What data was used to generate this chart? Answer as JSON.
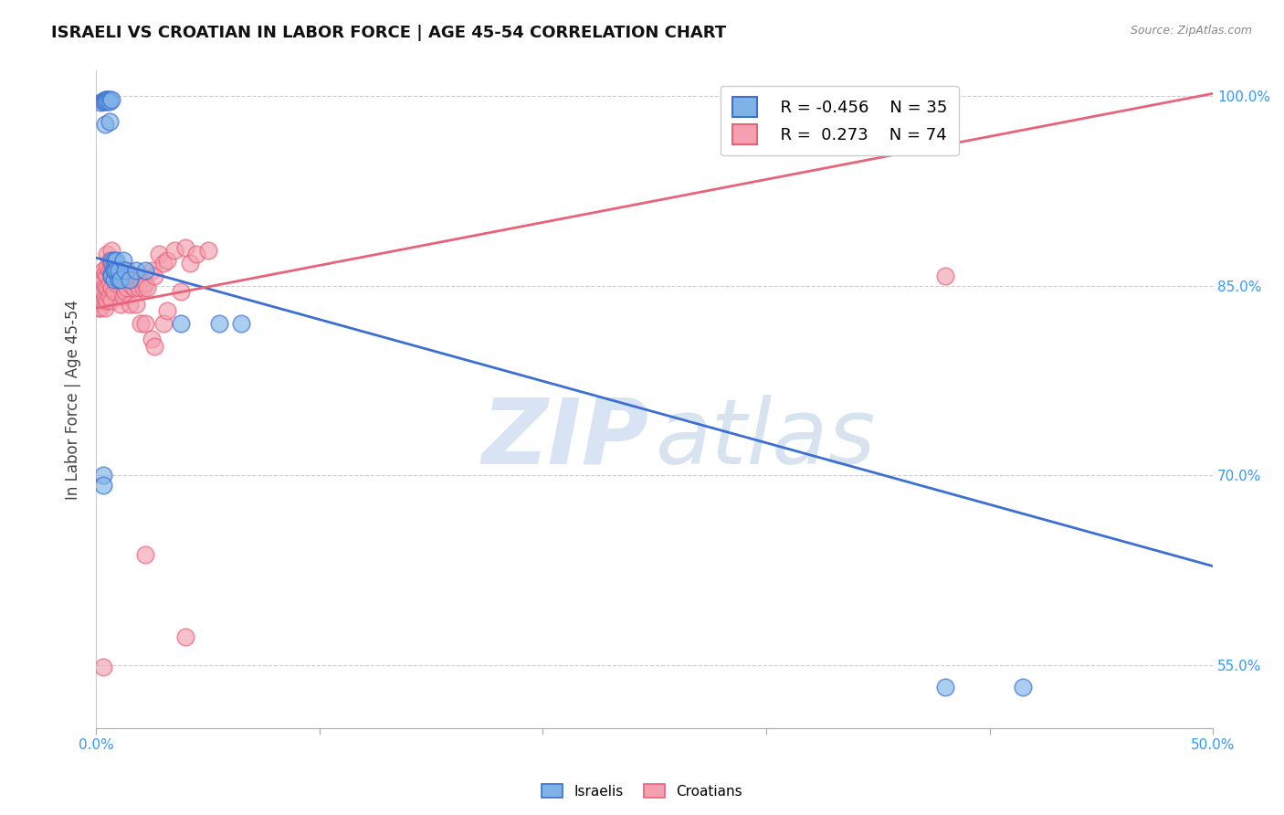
{
  "title": "ISRAELI VS CROATIAN IN LABOR FORCE | AGE 45-54 CORRELATION CHART",
  "source": "Source: ZipAtlas.com",
  "ylabel": "In Labor Force | Age 45-54",
  "xlim": [
    0.0,
    0.5
  ],
  "ylim": [
    0.5,
    1.02
  ],
  "ytick_vals": [
    0.55,
    0.7,
    0.85,
    1.0
  ],
  "ytick_labels": [
    "55.0%",
    "70.0%",
    "85.0%",
    "100.0%"
  ],
  "xtick_vals": [
    0.0,
    0.1,
    0.2,
    0.3,
    0.4,
    0.5
  ],
  "xtick_labels": [
    "0.0%",
    "",
    "",
    "",
    "",
    "50.0%"
  ],
  "legend_r_israeli": "-0.456",
  "legend_n_israeli": "35",
  "legend_r_croatian": "0.273",
  "legend_n_croatian": "74",
  "israeli_color": "#7fb3e8",
  "croatian_color": "#f4a0b0",
  "israeli_line_color": "#3b6fd4",
  "croatian_line_color": "#e8637a",
  "israeli_line": {
    "x0": 0.0,
    "y0": 0.872,
    "x1": 0.5,
    "y1": 0.628
  },
  "croatian_line": {
    "x0": 0.0,
    "y0": 0.832,
    "x1": 0.5,
    "y1": 1.002
  },
  "israeli_points": [
    [
      0.002,
      0.995
    ],
    [
      0.003,
      0.996
    ],
    [
      0.004,
      0.997
    ],
    [
      0.004,
      0.996
    ],
    [
      0.004,
      0.978
    ],
    [
      0.005,
      0.997
    ],
    [
      0.005,
      0.997
    ],
    [
      0.005,
      0.996
    ],
    [
      0.006,
      0.997
    ],
    [
      0.006,
      0.996
    ],
    [
      0.006,
      0.98
    ],
    [
      0.007,
      0.997
    ],
    [
      0.007,
      0.86
    ],
    [
      0.007,
      0.858
    ],
    [
      0.007,
      0.87
    ],
    [
      0.008,
      0.87
    ],
    [
      0.008,
      0.855
    ],
    [
      0.008,
      0.862
    ],
    [
      0.009,
      0.87
    ],
    [
      0.009,
      0.862
    ],
    [
      0.01,
      0.855
    ],
    [
      0.01,
      0.862
    ],
    [
      0.011,
      0.855
    ],
    [
      0.012,
      0.87
    ],
    [
      0.013,
      0.862
    ],
    [
      0.015,
      0.855
    ],
    [
      0.018,
      0.862
    ],
    [
      0.022,
      0.862
    ],
    [
      0.038,
      0.82
    ],
    [
      0.055,
      0.82
    ],
    [
      0.065,
      0.82
    ],
    [
      0.38,
      0.532
    ],
    [
      0.415,
      0.532
    ],
    [
      0.003,
      0.7
    ],
    [
      0.003,
      0.692
    ]
  ],
  "croatian_points": [
    [
      0.001,
      0.832
    ],
    [
      0.001,
      0.84
    ],
    [
      0.002,
      0.832
    ],
    [
      0.002,
      0.845
    ],
    [
      0.002,
      0.855
    ],
    [
      0.003,
      0.838
    ],
    [
      0.003,
      0.845
    ],
    [
      0.003,
      0.855
    ],
    [
      0.003,
      0.862
    ],
    [
      0.004,
      0.832
    ],
    [
      0.004,
      0.84
    ],
    [
      0.004,
      0.85
    ],
    [
      0.004,
      0.86
    ],
    [
      0.005,
      0.838
    ],
    [
      0.005,
      0.848
    ],
    [
      0.005,
      0.858
    ],
    [
      0.005,
      0.865
    ],
    [
      0.005,
      0.875
    ],
    [
      0.006,
      0.842
    ],
    [
      0.006,
      0.852
    ],
    [
      0.006,
      0.862
    ],
    [
      0.006,
      0.87
    ],
    [
      0.007,
      0.838
    ],
    [
      0.007,
      0.848
    ],
    [
      0.007,
      0.858
    ],
    [
      0.007,
      0.868
    ],
    [
      0.007,
      0.878
    ],
    [
      0.008,
      0.845
    ],
    [
      0.008,
      0.858
    ],
    [
      0.008,
      0.868
    ],
    [
      0.009,
      0.852
    ],
    [
      0.009,
      0.862
    ],
    [
      0.01,
      0.855
    ],
    [
      0.01,
      0.865
    ],
    [
      0.011,
      0.858
    ],
    [
      0.011,
      0.835
    ],
    [
      0.012,
      0.852
    ],
    [
      0.012,
      0.842
    ],
    [
      0.013,
      0.855
    ],
    [
      0.013,
      0.845
    ],
    [
      0.014,
      0.848
    ],
    [
      0.014,
      0.862
    ],
    [
      0.015,
      0.855
    ],
    [
      0.015,
      0.835
    ],
    [
      0.016,
      0.85
    ],
    [
      0.017,
      0.848
    ],
    [
      0.018,
      0.852
    ],
    [
      0.019,
      0.848
    ],
    [
      0.02,
      0.855
    ],
    [
      0.021,
      0.848
    ],
    [
      0.022,
      0.852
    ],
    [
      0.023,
      0.848
    ],
    [
      0.025,
      0.862
    ],
    [
      0.026,
      0.858
    ],
    [
      0.028,
      0.875
    ],
    [
      0.03,
      0.868
    ],
    [
      0.032,
      0.87
    ],
    [
      0.035,
      0.878
    ],
    [
      0.04,
      0.88
    ],
    [
      0.042,
      0.868
    ],
    [
      0.045,
      0.875
    ],
    [
      0.05,
      0.878
    ],
    [
      0.018,
      0.835
    ],
    [
      0.02,
      0.82
    ],
    [
      0.022,
      0.82
    ],
    [
      0.03,
      0.82
    ],
    [
      0.032,
      0.83
    ],
    [
      0.022,
      0.637
    ],
    [
      0.04,
      0.572
    ],
    [
      0.003,
      0.548
    ],
    [
      0.038,
      0.845
    ],
    [
      0.38,
      0.858
    ],
    [
      0.025,
      0.808
    ],
    [
      0.026,
      0.802
    ]
  ]
}
